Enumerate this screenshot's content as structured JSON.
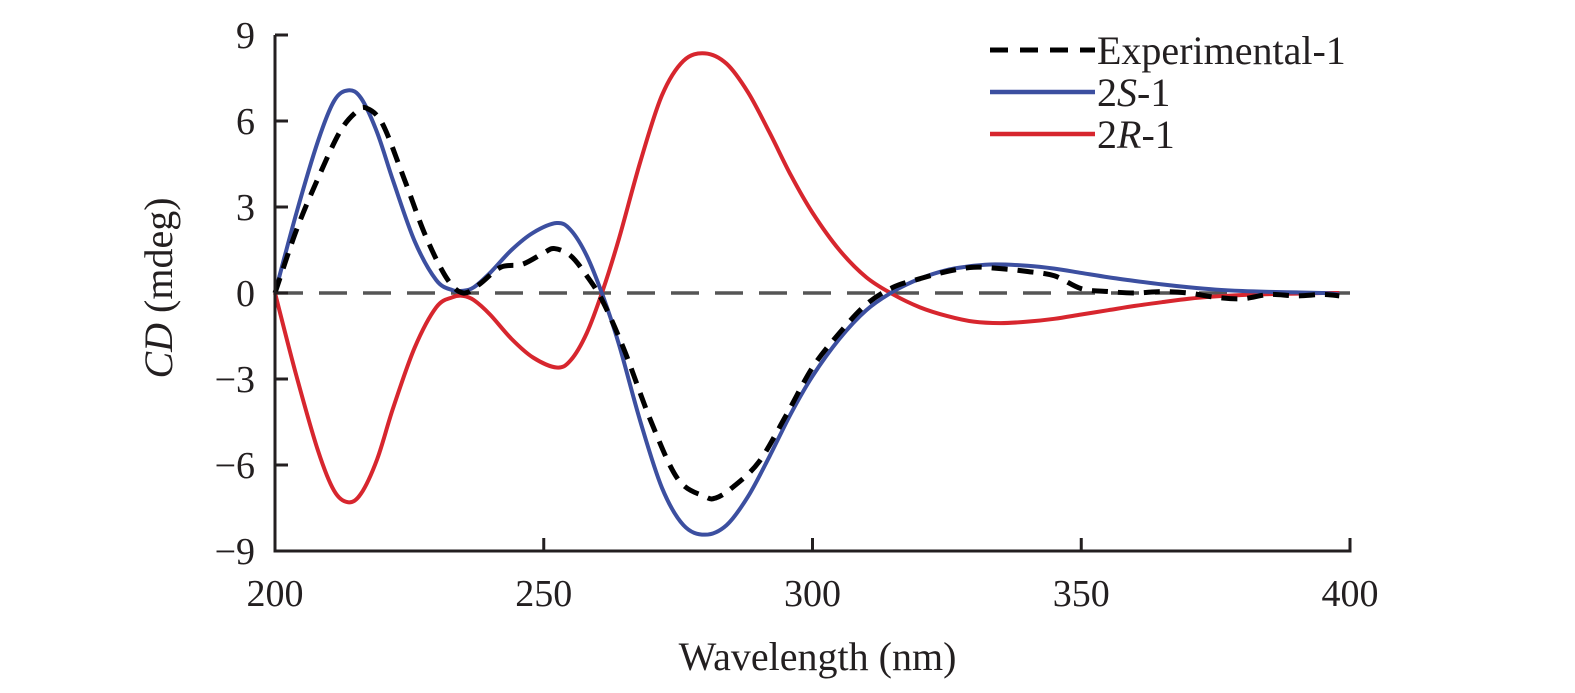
{
  "chart_data": {
    "type": "line",
    "title": "",
    "xlabel": "Wavelength (nm)",
    "ylabel_italic": "CD",
    "ylabel_rest": " (mdeg)",
    "xlim": [
      200,
      400
    ],
    "ylim": [
      -9,
      9
    ],
    "xticks": [
      200,
      250,
      300,
      350,
      400
    ],
    "xtick_labels": [
      "200",
      "250",
      "300",
      "350",
      "400"
    ],
    "yticks": [
      -9,
      -6,
      -3,
      0,
      3,
      6,
      9
    ],
    "ytick_labels": [
      "−9",
      "−6",
      "−3",
      "0",
      "3",
      "6",
      "9"
    ],
    "grid": false,
    "legend_position": "top-right",
    "zero_line": {
      "style": "dashed",
      "color": "#555555"
    },
    "series": [
      {
        "name": "Experimental-1",
        "label_parts": [
          {
            "text": "Experimental-1",
            "italic": false
          }
        ],
        "color": "#000000",
        "style": "dashed",
        "x": [
          200,
          204,
          208,
          212,
          215,
          217,
          220,
          224,
          228,
          232,
          235,
          238,
          242,
          246,
          250,
          252,
          255,
          258,
          261,
          265,
          270,
          275,
          280,
          282,
          285,
          290,
          295,
          300,
          305,
          310,
          315,
          320,
          325,
          330,
          335,
          340,
          345,
          350,
          355,
          360,
          365,
          370,
          375,
          380,
          385,
          390,
          395,
          398
        ],
        "y": [
          0,
          2.2,
          4.0,
          5.6,
          6.3,
          6.45,
          5.9,
          4.0,
          2.0,
          0.5,
          0.0,
          0.3,
          0.9,
          1.0,
          1.4,
          1.55,
          1.3,
          0.6,
          -0.3,
          -2.0,
          -4.5,
          -6.5,
          -7.1,
          -7.15,
          -6.8,
          -5.9,
          -4.3,
          -2.6,
          -1.4,
          -0.4,
          0.2,
          0.5,
          0.75,
          0.9,
          0.85,
          0.75,
          0.6,
          0.15,
          0.05,
          0.0,
          0.05,
          0.0,
          -0.15,
          -0.2,
          -0.05,
          -0.1,
          -0.05,
          -0.1
        ]
      },
      {
        "name": "2S-1",
        "label_parts": [
          {
            "text": "2",
            "italic": false
          },
          {
            "text": "S",
            "italic": true
          },
          {
            "text": "-1",
            "italic": false
          }
        ],
        "color": "#3c4fa0",
        "style": "solid",
        "x": [
          200,
          204,
          208,
          211,
          213.6,
          216,
          219,
          222,
          226,
          230,
          233,
          235,
          237,
          240,
          244,
          248,
          252.4,
          255,
          258,
          261,
          264,
          268,
          272,
          276,
          280,
          284,
          288,
          292,
          296,
          300,
          305,
          310,
          315,
          320,
          325,
          330,
          334,
          340,
          345,
          350,
          355,
          360,
          365,
          370,
          375,
          380,
          385,
          390,
          395,
          398
        ],
        "y": [
          0,
          2.8,
          5.3,
          6.7,
          7.07,
          6.8,
          5.6,
          3.9,
          1.8,
          0.45,
          0.1,
          0.08,
          0.2,
          0.7,
          1.5,
          2.1,
          2.44,
          2.2,
          1.3,
          -0.1,
          -1.8,
          -4.5,
          -6.8,
          -8.1,
          -8.43,
          -8.1,
          -7.1,
          -5.7,
          -4.2,
          -2.9,
          -1.6,
          -0.6,
          0.05,
          0.5,
          0.8,
          0.95,
          1.0,
          0.95,
          0.85,
          0.7,
          0.55,
          0.42,
          0.3,
          0.2,
          0.12,
          0.07,
          0.04,
          0.02,
          0.0,
          -0.05
        ]
      },
      {
        "name": "2R-1",
        "label_parts": [
          {
            "text": "2",
            "italic": false
          },
          {
            "text": "R",
            "italic": true
          },
          {
            "text": "-1",
            "italic": false
          }
        ],
        "color": "#d7262e",
        "style": "solid",
        "x": [
          200,
          204,
          208,
          211,
          213.6,
          216,
          219,
          222,
          226,
          230,
          233,
          235,
          237,
          240,
          244,
          248,
          252.4,
          255,
          258,
          261,
          264,
          268,
          272,
          276,
          280,
          284,
          288,
          292,
          296,
          300,
          305,
          310,
          315,
          320,
          325,
          330,
          335,
          340,
          345,
          350,
          355,
          360,
          365,
          370,
          375,
          380,
          385,
          390,
          395,
          398
        ],
        "y": [
          0,
          -2.9,
          -5.5,
          -6.9,
          -7.3,
          -7.0,
          -5.8,
          -4.0,
          -1.9,
          -0.5,
          -0.15,
          -0.1,
          -0.25,
          -0.75,
          -1.6,
          -2.25,
          -2.6,
          -2.35,
          -1.4,
          0.1,
          1.9,
          4.6,
          6.9,
          8.1,
          8.36,
          8.0,
          7.0,
          5.6,
          4.1,
          2.8,
          1.5,
          0.55,
          -0.05,
          -0.5,
          -0.8,
          -1.0,
          -1.05,
          -1.0,
          -0.9,
          -0.75,
          -0.6,
          -0.45,
          -0.32,
          -0.2,
          -0.12,
          -0.07,
          -0.04,
          -0.02,
          0.0,
          0.0
        ]
      }
    ]
  }
}
